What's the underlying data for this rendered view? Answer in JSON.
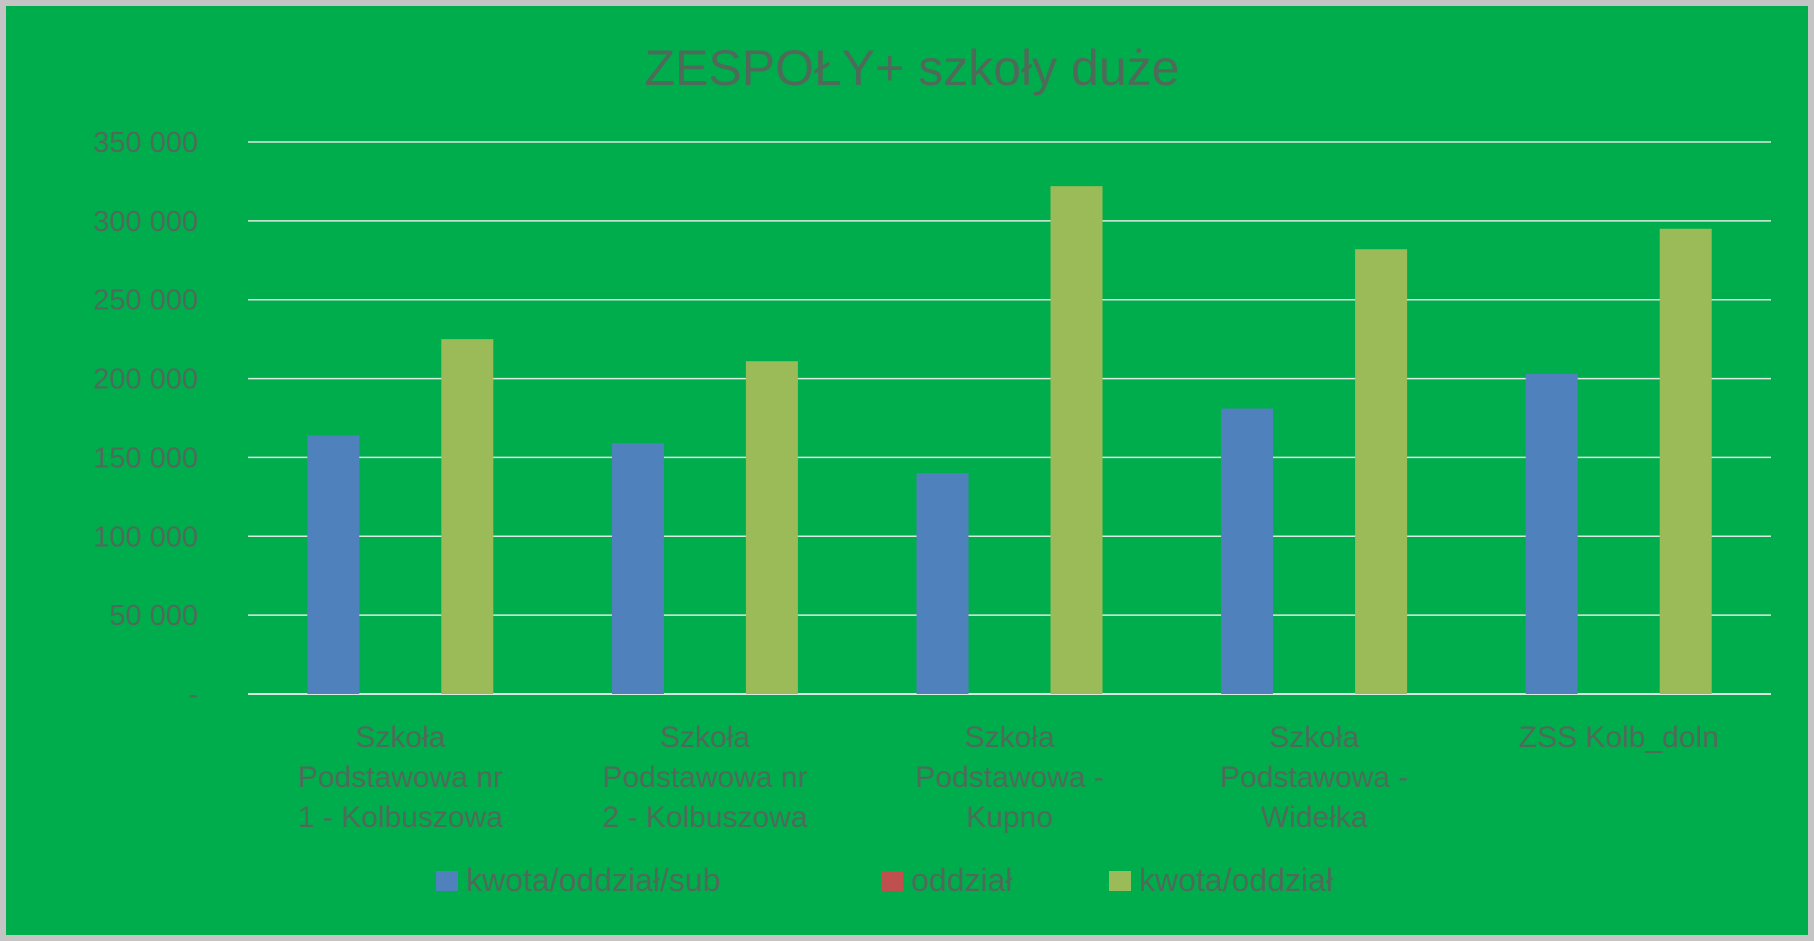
{
  "chart_data": {
    "type": "bar",
    "title": "ZESPOŁY+ szkoły duże",
    "categories": [
      [
        "Szkoła",
        "Podstawowa nr",
        "1 - Kolbuszowa"
      ],
      [
        "Szkoła",
        "Podstawowa nr",
        "2 - Kolbuszowa"
      ],
      [
        "Szkoła",
        "Podstawowa -",
        "Kupno"
      ],
      [
        "Szkoła",
        "Podstawowa -",
        "Widełka"
      ],
      [
        "ZSS Kolb_doln"
      ]
    ],
    "series": [
      {
        "name": "kwota/oddział/sub",
        "color": "#4f81bd",
        "values": [
          164000,
          159000,
          140000,
          181000,
          203000
        ]
      },
      {
        "name": "oddział",
        "color": "#c0504d",
        "values": [
          0,
          0,
          0,
          0,
          0
        ]
      },
      {
        "name": "kwota/oddział",
        "color": "#9bbb59",
        "values": [
          225000,
          211000,
          322000,
          282000,
          295000
        ]
      }
    ],
    "y_ticks": [
      {
        "value": 0,
        "label": "-"
      },
      {
        "value": 50000,
        "label": "50 000"
      },
      {
        "value": 100000,
        "label": "100 000"
      },
      {
        "value": 150000,
        "label": "150 000"
      },
      {
        "value": 200000,
        "label": "200 000"
      },
      {
        "value": 250000,
        "label": "250 000"
      },
      {
        "value": 300000,
        "label": "300 000"
      },
      {
        "value": 350000,
        "label": "350 000"
      }
    ],
    "ylim": [
      0,
      350000
    ],
    "grid": true,
    "legend_position": "bottom",
    "background_color": "#00ad4c"
  }
}
